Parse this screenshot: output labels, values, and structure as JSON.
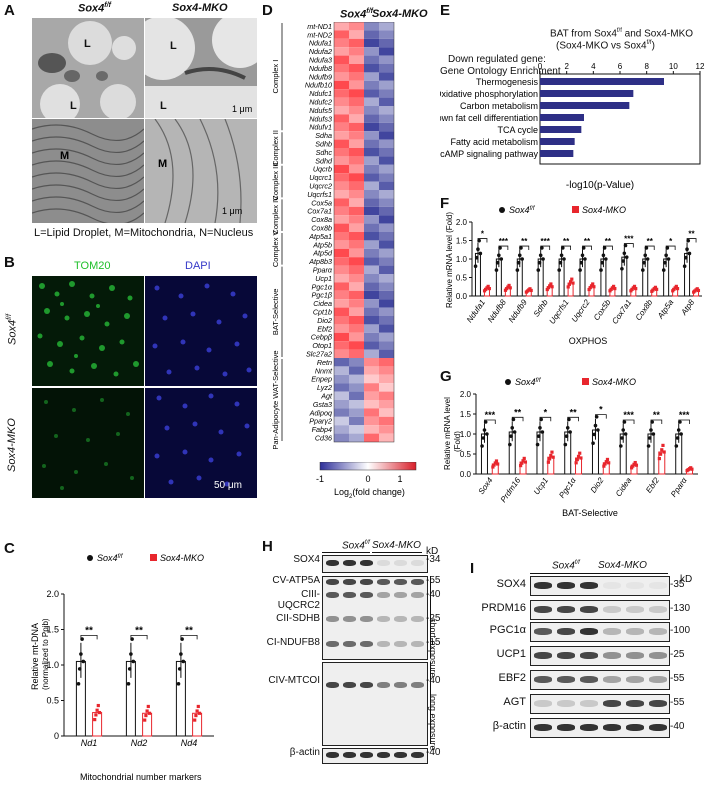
{
  "panels": {
    "A": {
      "label": "A",
      "col_left": "Sox4",
      "col_left_sup": "f/f",
      "col_right": "Sox4-MKO",
      "marks_L": [
        "L",
        "L",
        "L",
        "L"
      ],
      "mark_M": [
        "M",
        "M"
      ],
      "scale_top": "1 μm",
      "scale_bottom": "1 μm",
      "legend": "L=Lipid Droplet, M=Mitochondria, N=Nucleus"
    },
    "B": {
      "label": "B",
      "channel_1": "TOM20",
      "channel_2": "DAPI",
      "row_1": "Sox4",
      "row_1_sup": "f/f",
      "row_2": "Sox4-MKO",
      "scale": "50 μm"
    },
    "C": {
      "label": "C",
      "legend_1": "Sox4",
      "legend_1_sup": "f/f",
      "legend_2": "Sox4-MKO",
      "ylabel": "Relative mt-DNA",
      "ylabel_2": "(normalized to Ppib)",
      "xlabel": "Mitochondrial number markers",
      "sig": [
        "**",
        "**",
        "**"
      ]
    },
    "D": {
      "label": "D",
      "col_left": "Sox4",
      "col_left_sup": "f/f",
      "col_right": "Sox4-MKO",
      "groups": [
        "Complex I",
        "Complex II",
        "Complex III",
        "Complex IV",
        "Complex V",
        "BAT-Selective",
        "Pan-Adipocyte WAT-Selective"
      ],
      "genes": [
        "mt-ND1",
        "mt-ND2",
        "Ndufa1",
        "Ndufa2",
        "Ndufa3",
        "Ndufb8",
        "Ndufb9",
        "Ndufb10",
        "Ndufc1",
        "Ndufc2",
        "Ndufs5",
        "Ndufs3",
        "Ndufv1",
        "Sdha",
        "Sdhb",
        "Sdhc",
        "Sdhd",
        "Uqcrb",
        "Uqcrc1",
        "Uqcrc2",
        "Uqcrfs1",
        "Cox5a",
        "Cox7a1",
        "Cox8a",
        "Cox8b",
        "Atp5a1",
        "Atp5b",
        "Atp5d",
        "Atp8b3",
        "Pparα",
        "Ucp1",
        "Pgc1α",
        "Pgc1β",
        "Cidea",
        "Cpt1b",
        "Dio2",
        "Ebf2",
        "Cebpβ",
        "Otop1",
        "Slc27a2",
        "Retn",
        "Nnmt",
        "Enpep",
        "Lyz2",
        "Agt",
        "Gsta3",
        "Adipoq",
        "Pparγ2",
        "Fabp4",
        "Cd36"
      ],
      "colorbar_ticks": [
        "-1",
        "0",
        "1"
      ],
      "colorbar_label": "Log",
      "colorbar_label_sub": "2",
      "colorbar_label_tail": "(fold change)"
    },
    "E": {
      "label": "E",
      "title_1": "BAT from Sox4",
      "title_1_sup": "f/f",
      "title_1_tail": " and Sox4-MKO",
      "title_2": "(Sox4-MKO vs Sox4",
      "title_2_sup": "f/f",
      "title_2_tail": ")",
      "left_1": "Down regulated gene:",
      "left_2": "Gene Ontology Enrichment",
      "xlabel": "-log10(p-Value)"
    },
    "F": {
      "label": "F",
      "legend_1": "Sox4",
      "legend_1_sup": "f/f",
      "legend_2": "Sox4-MKO",
      "ylabel": "Relative mRNA level (Fold)",
      "xlabel": "OXPHOS",
      "sig": [
        "*",
        "***",
        "**",
        "***",
        "**",
        "**",
        "**",
        "***",
        "**",
        "*",
        "**"
      ]
    },
    "G": {
      "label": "G",
      "legend_1": "Sox4",
      "legend_1_sup": "f/f",
      "legend_2": "Sox4-MKO",
      "ylabel": "Relative mRNA level",
      "ylabel_2": "(Fold)",
      "xlabel": "BAT-Selective",
      "sig": [
        "***",
        "**",
        "*",
        "**",
        "*",
        "***",
        "**",
        "***"
      ]
    },
    "H": {
      "label": "H",
      "group_1": "Sox4",
      "group_1_sup": "f/f",
      "group_2": "Sox4-MKO",
      "kd": "kD",
      "rows": [
        "SOX4",
        "CV-ATP5A",
        "CIII-UQCRC2",
        "CII-SDHB",
        "CI-NDUFB8",
        "CIV-MTCOI",
        "β-actin"
      ],
      "markers": [
        "34",
        "55",
        "40",
        "25",
        "15",
        "40",
        "40"
      ],
      "exposure_short": "short exposure",
      "exposure_long": "long exposure"
    },
    "I": {
      "label": "I",
      "group_1": "Sox4",
      "group_1_sup": "f/f",
      "group_2": "Sox4-MKO",
      "kd": "kD",
      "rows": [
        "SOX4",
        "PRDM16",
        "PGC1α",
        "UCP1",
        "EBF2",
        "AGT",
        "β-actin"
      ],
      "markers": [
        "35",
        "130",
        "100",
        "25",
        "55",
        "55",
        "40"
      ]
    }
  },
  "chart_data": [
    {
      "panel": "C",
      "type": "bar",
      "categories": [
        "Nd1",
        "Nd2",
        "Nd4"
      ],
      "ylim": [
        0,
        2.0
      ],
      "yticks": [
        "0",
        "0.5",
        "1.0",
        "1.5",
        "2.0"
      ],
      "series": [
        {
          "name": "Sox4f/f",
          "values": [
            1.05,
            1.05,
            1.05
          ]
        },
        {
          "name": "Sox4-MKO",
          "values": [
            0.33,
            0.32,
            0.32
          ]
        }
      ]
    },
    {
      "panel": "E",
      "type": "bar",
      "orientation": "horizontal",
      "categories": [
        "Thermogenesis",
        "Oxidative phosphorylation",
        "Carbon metabolism",
        "Brown fat cell differentiation",
        "TCA cycle",
        "Fatty acid metabolism",
        "cAMP signaling pathway"
      ],
      "values": [
        9.3,
        7.0,
        6.7,
        3.3,
        3.1,
        2.6,
        2.5
      ],
      "xlim": [
        0,
        12
      ],
      "xticks": [
        "0",
        "2",
        "4",
        "6",
        "8",
        "10",
        "12"
      ]
    },
    {
      "panel": "F",
      "type": "bar",
      "categories": [
        "Ndufa1",
        "Ndufb8",
        "Ndufb9",
        "Sdhb",
        "Uqcrfs1",
        "Uqcrc2",
        "Cox5b",
        "Cox7a1",
        "Cox8b",
        "Atp5a",
        "Atp8"
      ],
      "ylim": [
        0,
        2.0
      ],
      "yticks": [
        "0.0",
        "0.5",
        "1.0",
        "1.5",
        "2.0"
      ],
      "series": [
        {
          "name": "Sox4f/f",
          "values": [
            1.15,
            1.0,
            1.0,
            1.0,
            1.0,
            1.0,
            1.0,
            1.05,
            1.0,
            1.0,
            1.15
          ]
        },
        {
          "name": "Sox4-MKO",
          "values": [
            0.2,
            0.22,
            0.15,
            0.25,
            0.35,
            0.25,
            0.2,
            0.2,
            0.18,
            0.2,
            0.15
          ]
        }
      ]
    },
    {
      "panel": "G",
      "type": "bar",
      "categories": [
        "Sox4",
        "Prdm16",
        "Ucp1",
        "Pgc1α",
        "Dio2",
        "Cidea",
        "Ebf2",
        "Pparα"
      ],
      "ylim": [
        0,
        2.0
      ],
      "yticks": [
        "0.0",
        "0.5",
        "1.0",
        "1.5",
        "2.0"
      ],
      "series": [
        {
          "name": "Sox4f/f",
          "values": [
            1.0,
            1.05,
            1.05,
            1.05,
            1.1,
            1.0,
            1.0,
            1.0
          ]
        },
        {
          "name": "Sox4-MKO",
          "values": [
            0.25,
            0.3,
            0.42,
            0.4,
            0.28,
            0.22,
            0.55,
            0.12
          ]
        }
      ]
    }
  ],
  "colors": {
    "black": "#111111",
    "red": "#e8262d",
    "navy": "#2e2f86",
    "tom20": "#1fbf2a",
    "dapi": "#3538c8"
  }
}
